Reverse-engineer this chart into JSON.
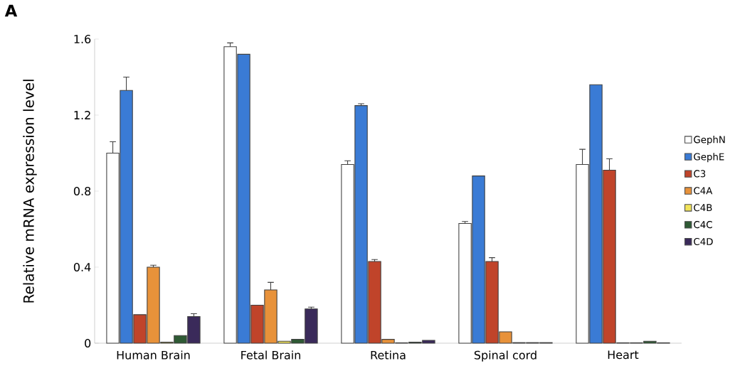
{
  "chart_data": {
    "type": "bar",
    "ylabel": "Relative mRNA expression level",
    "annotations": [
      "A"
    ],
    "categories": [
      "Human Brain",
      "Fetal Brain",
      "Retina",
      "Spinal cord",
      "Heart"
    ],
    "ylim": [
      0,
      1.6
    ],
    "yticks": [
      0,
      0.4,
      0.8,
      1.2,
      1.6
    ],
    "legend": "right",
    "series": [
      {
        "name": "GephN",
        "color": "#ffffff",
        "values": [
          1.0,
          1.56,
          0.94,
          0.63,
          0.94
        ],
        "errors": [
          0.06,
          0.02,
          0.02,
          0.01,
          0.08
        ]
      },
      {
        "name": "GephE",
        "color": "#3a7bd5",
        "values": [
          1.33,
          1.52,
          1.25,
          0.88,
          1.36
        ],
        "errors": [
          0.07,
          null,
          0.01,
          null,
          null
        ]
      },
      {
        "name": "C3",
        "color": "#c0442a",
        "values": [
          0.15,
          0.2,
          0.43,
          0.43,
          0.91
        ],
        "errors": [
          null,
          null,
          0.01,
          0.02,
          0.06
        ]
      },
      {
        "name": "C4A",
        "color": "#e8923a",
        "values": [
          0.4,
          0.28,
          0.02,
          0.06,
          0.002
        ],
        "errors": [
          0.01,
          0.04,
          null,
          null,
          null
        ]
      },
      {
        "name": "C4B",
        "color": "#f2e45a",
        "values": [
          0.005,
          0.01,
          0.002,
          0.003,
          0.002
        ],
        "errors": [
          null,
          null,
          null,
          null,
          null
        ]
      },
      {
        "name": "C4C",
        "color": "#2e5a34",
        "values": [
          0.04,
          0.02,
          0.005,
          0.003,
          0.01
        ],
        "errors": [
          null,
          null,
          null,
          null,
          null
        ]
      },
      {
        "name": "C4D",
        "color": "#3a2a5a",
        "values": [
          0.14,
          0.18,
          0.015,
          0.003,
          0.002
        ],
        "errors": [
          0.015,
          0.01,
          null,
          null,
          null
        ]
      }
    ]
  }
}
